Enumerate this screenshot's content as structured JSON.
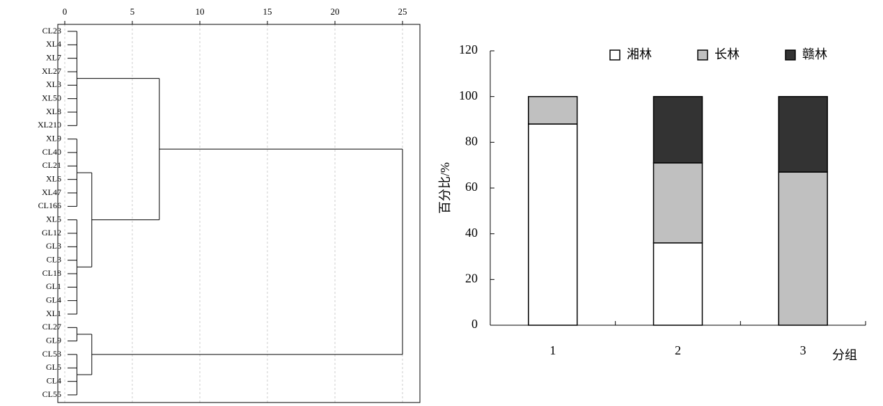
{
  "chart_data": [
    {
      "type": "dendrogram",
      "leaves": [
        "CL23",
        "XL4",
        "XL7",
        "XL27",
        "XL3",
        "XL50",
        "XL8",
        "XL210",
        "XL9",
        "CL40",
        "CL21",
        "XL6",
        "XL47",
        "CL166",
        "XL5",
        "GL12",
        "GL3",
        "CL3",
        "CL18",
        "GL1",
        "GL4",
        "XL1",
        "CL27",
        "GL9",
        "CL53",
        "GL5",
        "CL4",
        "CL55"
      ],
      "nodes": [
        {
          "children": [
            0,
            1,
            2,
            3,
            4,
            5,
            6,
            7
          ],
          "height": 0.9
        },
        {
          "children": [
            8,
            9,
            10,
            11,
            12,
            13
          ],
          "height": 0.9
        },
        {
          "children": [
            14,
            15,
            16,
            17,
            18,
            19,
            20,
            21
          ],
          "height": 0.9
        },
        {
          "children": [
            29,
            30
          ],
          "height": 2
        },
        {
          "children": [
            28,
            31
          ],
          "height": 7
        },
        {
          "children": [
            22,
            23
          ],
          "height": 0.9
        },
        {
          "children": [
            24,
            25,
            26,
            27
          ],
          "height": 0.9
        },
        {
          "children": [
            33,
            34
          ],
          "height": 2
        },
        {
          "children": [
            32,
            35
          ],
          "height": 25
        }
      ],
      "xlim": [
        0,
        25
      ],
      "xticks": [
        0,
        5,
        10,
        15,
        20,
        25
      ],
      "grid": true,
      "color": "#000000"
    },
    {
      "type": "stacked-bar",
      "xlabel": "分组",
      "ylabel": "百分比/%",
      "categories": [
        "1",
        "2",
        "3"
      ],
      "series": [
        {
          "name": "湘林",
          "color": "#ffffff",
          "values": [
            88,
            36,
            0
          ]
        },
        {
          "name": "长林",
          "color": "#c0c0c0",
          "values": [
            12,
            35,
            67
          ]
        },
        {
          "name": "赣林",
          "color": "#333333",
          "values": [
            0,
            29,
            33
          ]
        }
      ],
      "ylim": [
        0,
        120
      ],
      "yticks": [
        0,
        20,
        40,
        60,
        80,
        100,
        120
      ],
      "legend": "top"
    }
  ]
}
